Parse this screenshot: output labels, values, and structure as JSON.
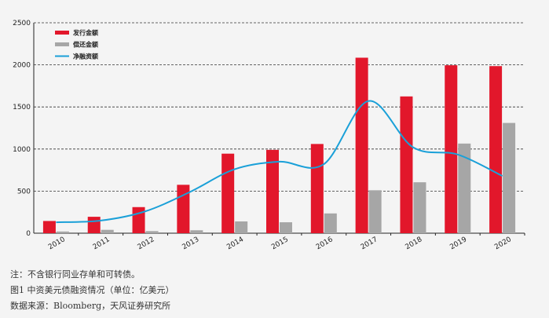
{
  "chart_data": {
    "type": "bar",
    "categories": [
      "2010",
      "2011",
      "2012",
      "2013",
      "2014",
      "2015",
      "2016",
      "2017",
      "2018",
      "2019",
      "2020"
    ],
    "series": [
      {
        "name": "发行金额",
        "kind": "bar",
        "color": "#e2172b",
        "values": [
          145,
          195,
          310,
          575,
          945,
          990,
          1060,
          2085,
          1625,
          1995,
          1985
        ]
      },
      {
        "name": "偿还金额",
        "kind": "bar",
        "color": "#a6a6a6",
        "values": [
          20,
          40,
          25,
          35,
          140,
          130,
          235,
          510,
          605,
          1065,
          1310
        ]
      },
      {
        "name": "净融资额",
        "kind": "line",
        "color": "#1aa0d8",
        "values": [
          130,
          150,
          260,
          490,
          760,
          850,
          820,
          1570,
          1020,
          935,
          680
        ]
      }
    ],
    "yticks": [
      0,
      500,
      1000,
      1500,
      2000,
      2500
    ],
    "ylim": [
      0,
      2500
    ],
    "grid": true,
    "legend": "top-left"
  },
  "captions": {
    "note": "注：不含银行同业存单和可转债。",
    "figure": "图1  中资美元债融资情况（单位：亿美元）",
    "source": "数据来源：Bloomberg，天风证券研究所"
  }
}
